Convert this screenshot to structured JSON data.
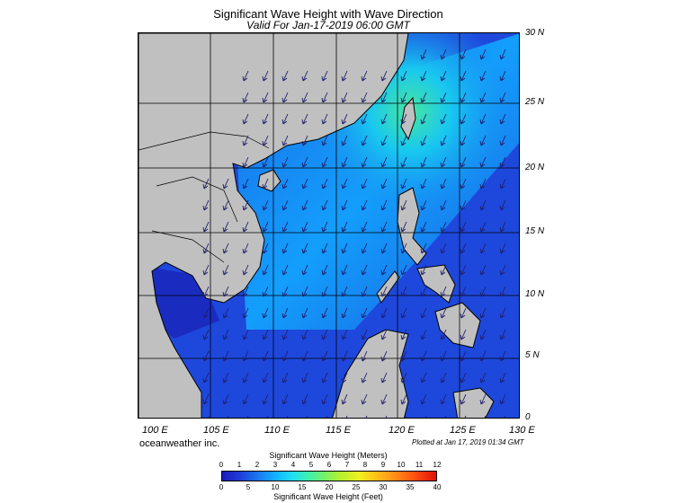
{
  "title": "Significant Wave Height with Wave Direction",
  "subtitle": "Valid For Jan-17-2019 06:00 GMT",
  "lat_labels": [
    "30 N",
    "25 N",
    "20 N",
    "15 N",
    "10 N",
    "5 N",
    "0"
  ],
  "lon_labels": [
    "100 E",
    "105 E",
    "110 E",
    "115 E",
    "120 E",
    "125 E",
    "130 E"
  ],
  "credit": "oceanweather inc.",
  "plotted": "Plotted at Jan 17, 2019 01:34 GMT",
  "colorbar": {
    "title_meters": "Significant Wave Height (Meters)",
    "title_feet": "Significant Wave Height (Feet)",
    "ticks_meters": [
      "0",
      "1",
      "2",
      "3",
      "4",
      "5",
      "6",
      "7",
      "8",
      "9",
      "10",
      "11",
      "12"
    ],
    "ticks_feet": [
      "0",
      "5",
      "10",
      "15",
      "20",
      "25",
      "30",
      "35",
      "40"
    ]
  },
  "colors": {
    "land": "#c0c0c0",
    "ocean_low": "#1a3fd6",
    "ocean_mid": "#12b2ff",
    "ocean_high": "#3cf0b0",
    "arrows": "#1e1e6e"
  }
}
